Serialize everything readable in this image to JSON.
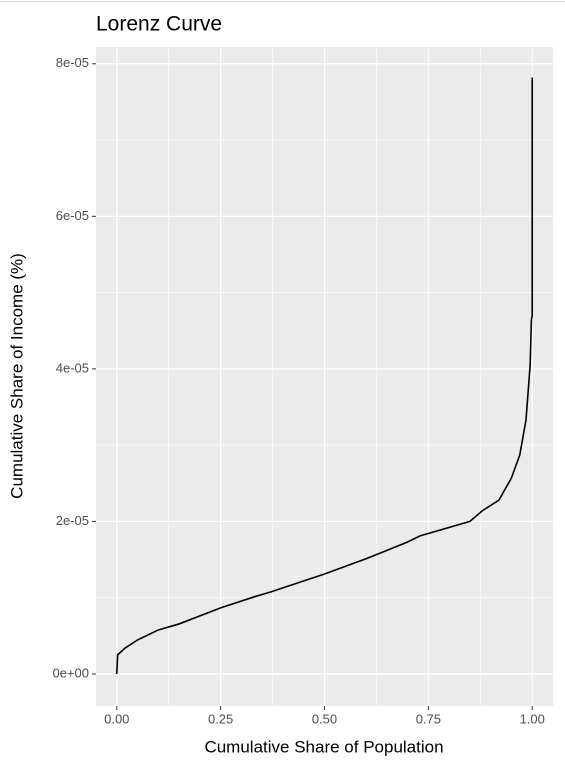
{
  "chart_data": {
    "type": "line",
    "title": "Lorenz Curve",
    "x_label": "Cumulative Share of Population",
    "y_label": "Cumulative Share of Income (%)",
    "x": [
      0,
      0.002,
      0.02,
      0.05,
      0.1,
      0.15,
      0.25,
      0.33,
      0.37,
      0.5,
      0.6,
      0.7,
      0.73,
      0.85,
      0.88,
      0.92,
      0.95,
      0.97,
      0.985,
      0.995,
      0.998,
      1.0,
      1.0
    ],
    "values": [
      0,
      2.5e-06,
      3.4e-06,
      4.46e-06,
      5.77e-06,
      6.56e-06,
      8.66e-06,
      1.01e-05,
      1.075e-05,
      1.31e-05,
      1.51e-05,
      1.73e-05,
      1.81e-05,
      2e-05,
      2.14e-05,
      2.28e-05,
      2.57e-05,
      2.87e-05,
      3.33e-05,
      4.05e-05,
      4.64e-05,
      4.7e-05,
      7.82e-05
    ],
    "color": "#000000",
    "xlim": [
      -0.05,
      1.05
    ],
    "ylim": [
      -4.2e-06,
      8.22e-05
    ],
    "xticks": [
      {
        "value": 0,
        "label": "0.00"
      },
      {
        "value": 0.25,
        "label": "0.25"
      },
      {
        "value": 0.5,
        "label": "0.50"
      },
      {
        "value": 0.75,
        "label": "0.75"
      },
      {
        "value": 1,
        "label": "1.00"
      }
    ],
    "yticks": [
      {
        "value": 0,
        "label": "0e+00"
      },
      {
        "value": 2e-05,
        "label": "2e-05"
      },
      {
        "value": 4e-05,
        "label": "4e-05"
      },
      {
        "value": 6e-05,
        "label": "6e-05"
      },
      {
        "value": 8e-05,
        "label": "8e-05"
      }
    ],
    "x_minor_breaks": [
      0.125,
      0.375,
      0.625,
      0.875
    ],
    "y_minor_breaks": [
      1e-05,
      3e-05,
      5e-05,
      7e-05
    ],
    "grid": true
  }
}
